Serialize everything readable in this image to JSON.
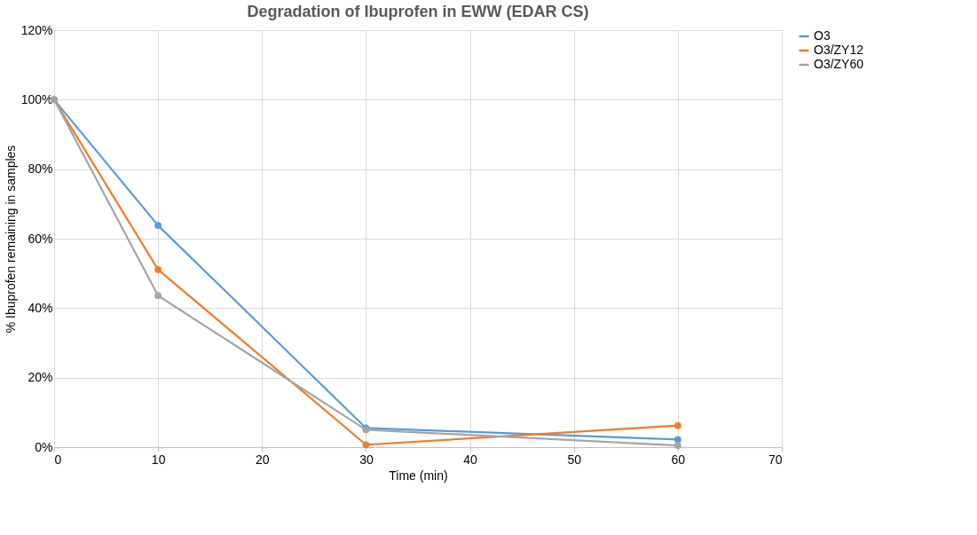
{
  "chart_data": {
    "type": "line",
    "title": "Degradation of Ibuprofen in EWW (EDAR CS)",
    "xlabel": "Time (min)",
    "ylabel": "% Ibuprofen remaining in samples",
    "x": [
      0,
      10,
      30,
      60
    ],
    "series": [
      {
        "name": "O3",
        "color": "#5b9bd5",
        "values": [
          100,
          63.8,
          5.5,
          2.2
        ]
      },
      {
        "name": "O3/ZY12",
        "color": "#ed7d31",
        "values": [
          100,
          51.1,
          0.7,
          6.2
        ]
      },
      {
        "name": "O3/ZY60",
        "color": "#a5a5a5",
        "values": [
          100,
          43.6,
          5.0,
          0.5
        ]
      }
    ],
    "xlim": [
      0,
      70
    ],
    "xticks": [
      0,
      10,
      20,
      30,
      40,
      50,
      60,
      70
    ],
    "ylim": [
      0,
      120
    ],
    "yticks": [
      {
        "value": 0,
        "label": "0%"
      },
      {
        "value": 20,
        "label": "20%"
      },
      {
        "value": 40,
        "label": "40%"
      },
      {
        "value": 60,
        "label": "60%"
      },
      {
        "value": 80,
        "label": "80%"
      },
      {
        "value": 100,
        "label": "100%"
      },
      {
        "value": 120,
        "label": "120%"
      }
    ],
    "grid": true,
    "legend": "right",
    "marker": "circle",
    "line_style": "solid"
  }
}
